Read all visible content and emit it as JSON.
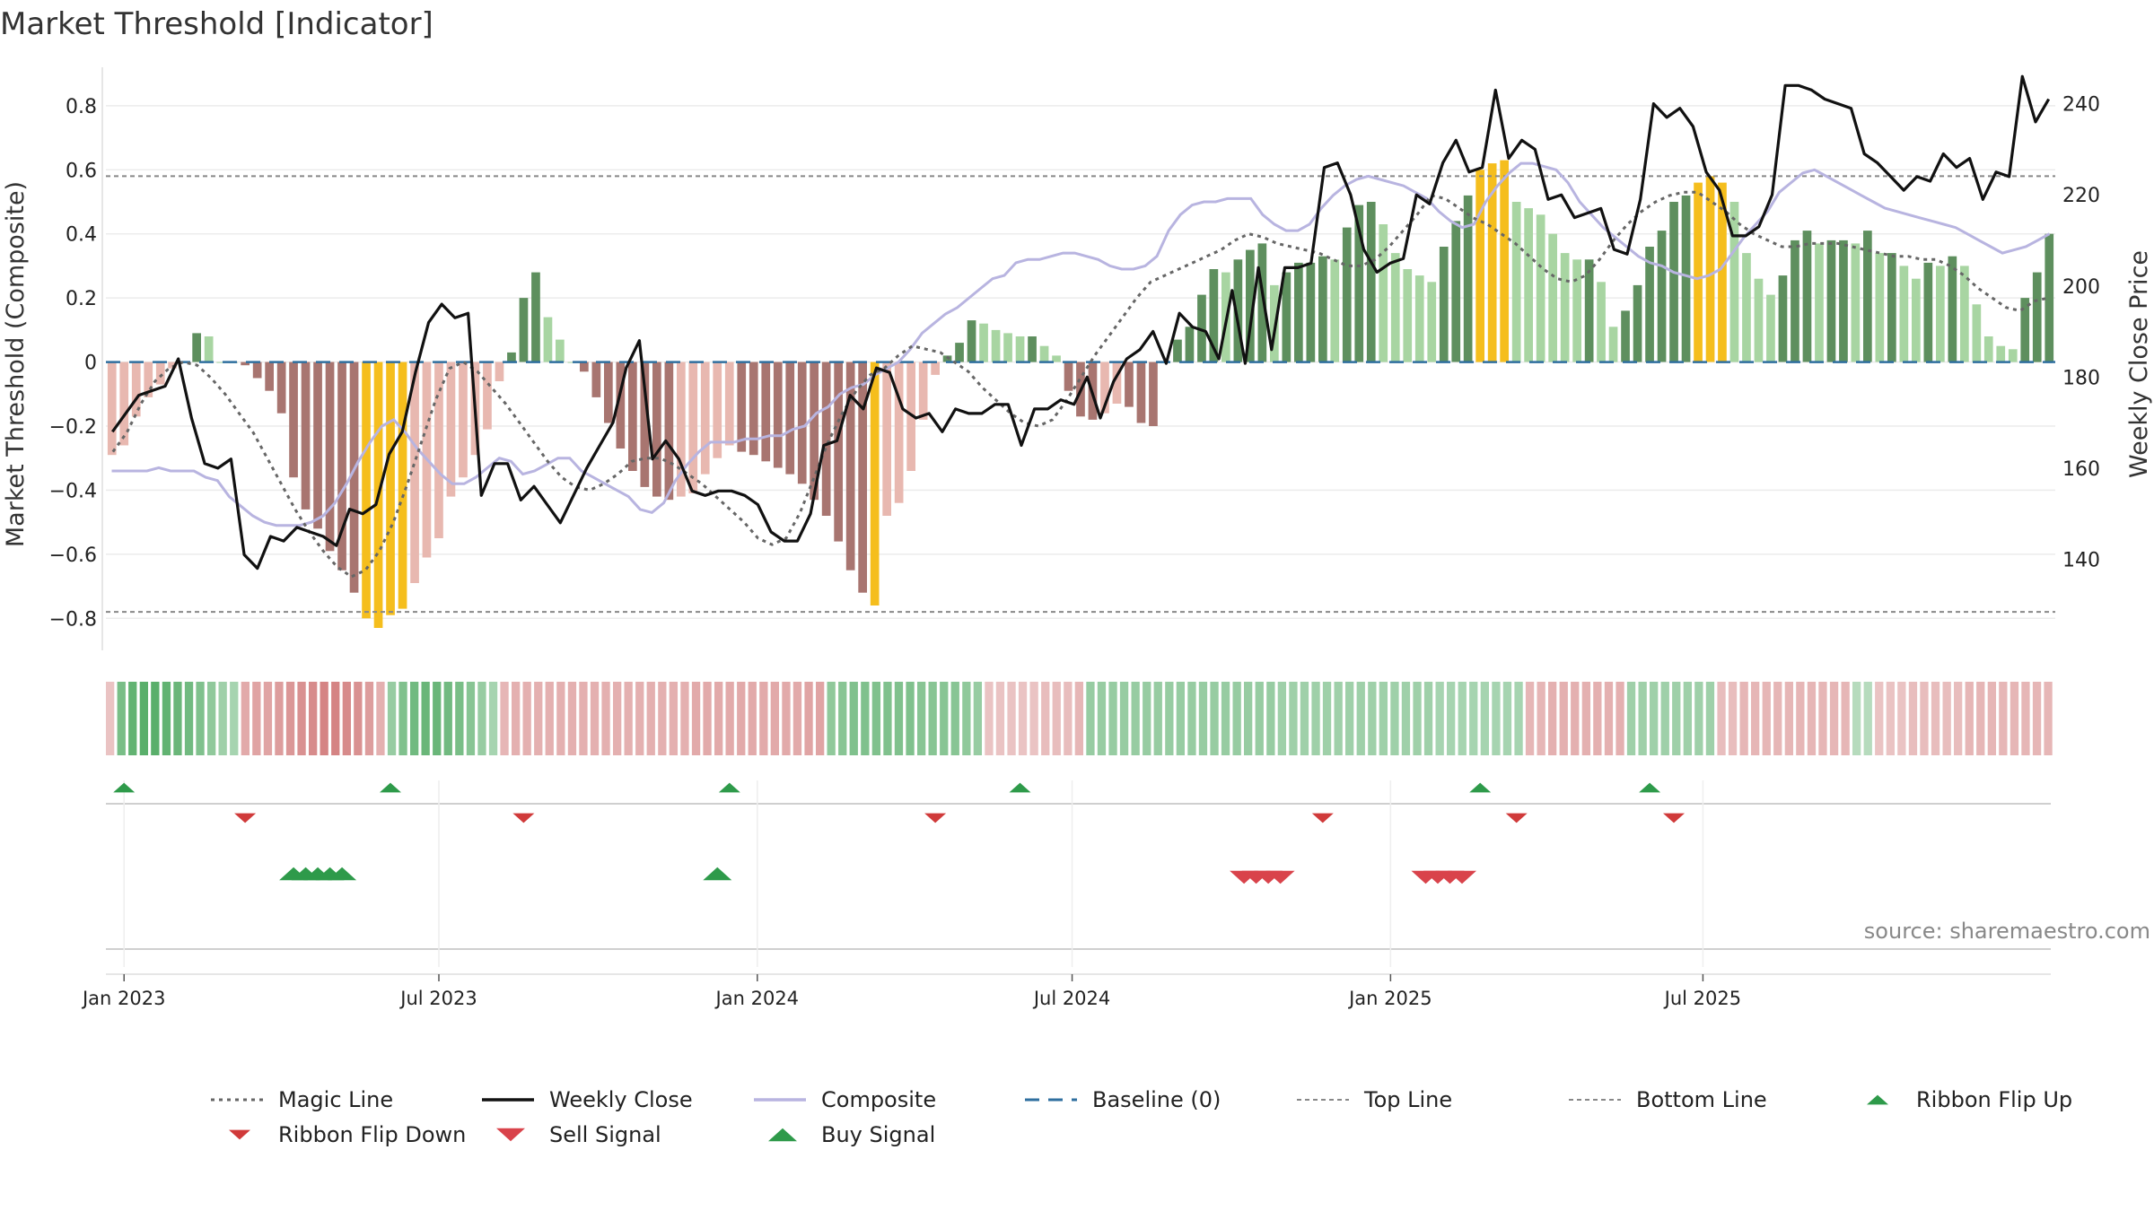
{
  "chart_data": {
    "type": "bar+line",
    "title": "Market Threshold [Indicator]",
    "ylabel_left": "Market Threshold (Composite)",
    "ylabel_right": "Weekly Close Price",
    "source": "source: sharemaestro.com",
    "ylim_left": [
      -0.9,
      0.92
    ],
    "ylim_right": [
      120,
      248
    ],
    "yticks_left": [
      {
        "v": 0.8,
        "t": "0.8"
      },
      {
        "v": 0.6,
        "t": "0.6"
      },
      {
        "v": 0.4,
        "t": "0.4"
      },
      {
        "v": 0.2,
        "t": "0.2"
      },
      {
        "v": 0,
        "t": "0"
      },
      {
        "v": -0.2,
        "t": "−0.2"
      },
      {
        "v": -0.4,
        "t": "−0.4"
      },
      {
        "v": -0.6,
        "t": "−0.6"
      },
      {
        "v": -0.8,
        "t": "−0.8"
      }
    ],
    "yticks_right": [
      {
        "v": 240,
        "t": "240"
      },
      {
        "v": 220,
        "t": "220"
      },
      {
        "v": 200,
        "t": "200"
      },
      {
        "v": 180,
        "t": "180"
      },
      {
        "v": 160,
        "t": "160"
      },
      {
        "v": 140,
        "t": "140"
      }
    ],
    "x_ticks": [
      {
        "w": 0,
        "t": "Jan 2023"
      },
      {
        "w": 26,
        "t": "Jul 2023"
      },
      {
        "w": 52.3,
        "t": "Jan 2024"
      },
      {
        "w": 78.3,
        "t": "Jul 2024"
      },
      {
        "w": 104.6,
        "t": "Jan 2025"
      },
      {
        "w": 130.4,
        "t": "Jul 2025"
      }
    ],
    "week_start": -1.5,
    "top_line": 0.58,
    "bottom_line": -0.78,
    "baseline": 0,
    "colors": {
      "bar_green_light": "#a8d5a2",
      "bar_green_dark": "#5e8f5e",
      "bar_red_light": "#e8b8b0",
      "bar_red_dark": "#a87570",
      "bar_extreme": "#f5be1d",
      "weekly_close": "#111111",
      "composite": "#b8b4e0",
      "magic_line": "#666666",
      "baseline": "#2f6f9f",
      "threshold_lines": "#888888",
      "buy": "#2e9a4a",
      "sell": "#d9434b"
    },
    "composite_bars": [
      -0.29,
      -0.26,
      -0.17,
      -0.11,
      -0.07,
      -0.02,
      0.0,
      0.09,
      0.08,
      0.0,
      0.0,
      -0.01,
      -0.05,
      -0.09,
      -0.16,
      -0.36,
      -0.46,
      -0.52,
      -0.59,
      -0.65,
      -0.72,
      -0.8,
      -0.83,
      -0.79,
      -0.77,
      -0.69,
      -0.61,
      -0.55,
      -0.42,
      -0.36,
      -0.29,
      -0.21,
      -0.06,
      0.03,
      0.2,
      0.28,
      0.14,
      0.07,
      0.0,
      -0.03,
      -0.11,
      -0.19,
      -0.27,
      -0.34,
      -0.39,
      -0.42,
      -0.43,
      -0.42,
      -0.41,
      -0.35,
      -0.3,
      -0.26,
      -0.28,
      -0.29,
      -0.31,
      -0.33,
      -0.35,
      -0.38,
      -0.43,
      -0.48,
      -0.56,
      -0.65,
      -0.72,
      -0.76,
      -0.48,
      -0.44,
      -0.34,
      -0.18,
      -0.04,
      0.02,
      0.06,
      0.13,
      0.12,
      0.1,
      0.09,
      0.08,
      0.08,
      0.05,
      0.02,
      -0.09,
      -0.17,
      -0.18,
      -0.16,
      -0.13,
      -0.14,
      -0.19,
      -0.2,
      0.0,
      0.07,
      0.11,
      0.21,
      0.29,
      0.28,
      0.32,
      0.35,
      0.37,
      0.24,
      0.28,
      0.31,
      0.31,
      0.33,
      0.32,
      0.42,
      0.49,
      0.5,
      0.43,
      0.34,
      0.29,
      0.27,
      0.25,
      0.36,
      0.44,
      0.52,
      0.6,
      0.62,
      0.63,
      0.5,
      0.48,
      0.46,
      0.4,
      0.34,
      0.32,
      0.32,
      0.25,
      0.11,
      0.16,
      0.24,
      0.36,
      0.41,
      0.5,
      0.52,
      0.56,
      0.58,
      0.56,
      0.5,
      0.34,
      0.26,
      0.21,
      0.27,
      0.38,
      0.41,
      0.37,
      0.38,
      0.38,
      0.37,
      0.41,
      0.34,
      0.34,
      0.3,
      0.26,
      0.31,
      0.3,
      0.33,
      0.3,
      0.18,
      0.08,
      0.05,
      0.04,
      0.2,
      0.28,
      0.4
    ],
    "weekly_close": [
      168,
      172,
      176,
      177,
      178,
      184,
      171,
      161,
      160,
      162,
      141,
      138,
      145,
      144,
      147,
      146,
      145,
      143,
      151,
      150,
      152,
      163,
      168,
      181,
      192,
      196,
      193,
      194,
      154,
      161,
      161,
      153,
      156,
      152,
      148,
      154,
      160,
      165,
      170,
      182,
      188,
      162,
      166,
      162,
      155,
      154,
      155,
      155,
      154,
      152,
      146,
      144,
      144,
      150,
      165,
      166,
      176,
      173,
      182,
      181,
      173,
      171,
      172,
      168,
      173,
      172,
      172,
      174,
      174,
      165,
      173,
      173,
      175,
      174,
      180,
      171,
      179,
      184,
      186,
      190,
      183,
      194,
      191,
      190,
      184,
      199,
      183,
      204,
      186,
      204,
      204,
      205,
      226,
      227,
      220,
      208,
      203,
      205,
      206,
      220,
      218,
      227,
      232,
      225,
      226,
      243,
      228,
      232,
      230,
      219,
      220,
      215,
      216,
      217,
      208,
      207,
      219,
      240,
      237,
      239,
      235,
      225,
      221,
      211,
      211,
      213,
      220,
      244,
      244,
      243,
      241,
      240,
      239,
      229,
      227,
      224,
      221,
      224,
      223,
      229,
      226,
      228,
      219,
      225,
      224,
      246,
      236,
      241
    ],
    "composite_line": [
      -0.34,
      -0.34,
      -0.34,
      -0.34,
      -0.33,
      -0.34,
      -0.34,
      -0.34,
      -0.36,
      -0.37,
      -0.42,
      -0.45,
      -0.48,
      -0.5,
      -0.51,
      -0.51,
      -0.51,
      -0.5,
      -0.48,
      -0.44,
      -0.38,
      -0.31,
      -0.25,
      -0.2,
      -0.18,
      -0.22,
      -0.27,
      -0.31,
      -0.35,
      -0.38,
      -0.38,
      -0.36,
      -0.33,
      -0.3,
      -0.31,
      -0.35,
      -0.34,
      -0.32,
      -0.3,
      -0.3,
      -0.34,
      -0.36,
      -0.38,
      -0.4,
      -0.42,
      -0.46,
      -0.47,
      -0.44,
      -0.37,
      -0.32,
      -0.28,
      -0.25,
      -0.25,
      -0.25,
      -0.24,
      -0.24,
      -0.23,
      -0.23,
      -0.21,
      -0.2,
      -0.16,
      -0.14,
      -0.1,
      -0.08,
      -0.07,
      -0.04,
      -0.02,
      0.0,
      0.04,
      0.09,
      0.12,
      0.15,
      0.17,
      0.2,
      0.23,
      0.26,
      0.27,
      0.31,
      0.32,
      0.32,
      0.33,
      0.34,
      0.34,
      0.33,
      0.32,
      0.3,
      0.29,
      0.29,
      0.3,
      0.33,
      0.41,
      0.46,
      0.49,
      0.5,
      0.5,
      0.51,
      0.51,
      0.51,
      0.46,
      0.43,
      0.41,
      0.41,
      0.43,
      0.48,
      0.52,
      0.55,
      0.57,
      0.58,
      0.57,
      0.56,
      0.55,
      0.53,
      0.51,
      0.47,
      0.44,
      0.42,
      0.43,
      0.5,
      0.55,
      0.59,
      0.62,
      0.62,
      0.61,
      0.6,
      0.56,
      0.5,
      0.46,
      0.42,
      0.39,
      0.36,
      0.33,
      0.31,
      0.3,
      0.28,
      0.27,
      0.26,
      0.27,
      0.29,
      0.34,
      0.39,
      0.43,
      0.47,
      0.53,
      0.56,
      0.59,
      0.6,
      0.58,
      0.56,
      0.54,
      0.52,
      0.5,
      0.48,
      0.47,
      0.46,
      0.45,
      0.44,
      0.43,
      0.42,
      0.4,
      0.38,
      0.36,
      0.34,
      0.35,
      0.36,
      0.38,
      0.4
    ],
    "magic_line": [
      -0.28,
      -0.22,
      -0.13,
      -0.06,
      -0.02,
      0.0,
      -0.01,
      -0.05,
      -0.1,
      -0.16,
      -0.22,
      -0.3,
      -0.38,
      -0.46,
      -0.53,
      -0.59,
      -0.64,
      -0.67,
      -0.65,
      -0.59,
      -0.5,
      -0.38,
      -0.25,
      -0.12,
      -0.02,
      0.0,
      -0.03,
      -0.08,
      -0.13,
      -0.19,
      -0.25,
      -0.31,
      -0.36,
      -0.39,
      -0.4,
      -0.38,
      -0.35,
      -0.31,
      -0.3,
      -0.3,
      -0.32,
      -0.35,
      -0.38,
      -0.42,
      -0.46,
      -0.5,
      -0.55,
      -0.57,
      -0.55,
      -0.47,
      -0.36,
      -0.25,
      -0.16,
      -0.09,
      -0.04,
      -0.02,
      0.02,
      0.05,
      0.04,
      0.03,
      0.0,
      -0.03,
      -0.08,
      -0.12,
      -0.16,
      -0.19,
      -0.2,
      -0.18,
      -0.12,
      -0.05,
      0.02,
      0.08,
      0.14,
      0.2,
      0.25,
      0.27,
      0.29,
      0.31,
      0.33,
      0.35,
      0.38,
      0.4,
      0.39,
      0.37,
      0.36,
      0.35,
      0.34,
      0.32,
      0.3,
      0.3,
      0.32,
      0.36,
      0.41,
      0.46,
      0.52,
      0.51,
      0.48,
      0.45,
      0.43,
      0.4,
      0.37,
      0.33,
      0.29,
      0.26,
      0.25,
      0.27,
      0.32,
      0.38,
      0.43,
      0.47,
      0.5,
      0.52,
      0.53,
      0.53,
      0.5,
      0.47,
      0.43,
      0.4,
      0.38,
      0.36,
      0.36,
      0.37,
      0.37,
      0.37,
      0.36,
      0.35,
      0.34,
      0.33,
      0.33,
      0.32,
      0.32,
      0.3,
      0.27,
      0.23,
      0.2,
      0.17,
      0.16,
      0.19,
      0.2
    ],
    "ribbon": [
      -0.2,
      0.6,
      0.75,
      0.8,
      0.8,
      0.75,
      0.7,
      0.65,
      0.55,
      0.45,
      0.35,
      0.3,
      -0.4,
      -0.45,
      -0.45,
      -0.5,
      -0.55,
      -0.6,
      -0.65,
      -0.7,
      -0.7,
      -0.65,
      -0.6,
      -0.5,
      -0.35,
      0.4,
      0.55,
      0.65,
      0.7,
      0.7,
      0.65,
      0.6,
      0.5,
      0.4,
      0.3,
      -0.3,
      -0.35,
      -0.35,
      -0.35,
      -0.35,
      -0.35,
      -0.35,
      -0.35,
      -0.35,
      -0.35,
      -0.35,
      -0.35,
      -0.35,
      -0.35,
      -0.35,
      -0.35,
      -0.35,
      -0.4,
      -0.4,
      -0.4,
      -0.4,
      -0.4,
      -0.4,
      -0.4,
      -0.4,
      -0.4,
      -0.4,
      -0.45,
      -0.45,
      0.45,
      0.5,
      0.55,
      0.55,
      0.55,
      0.55,
      0.55,
      0.55,
      0.5,
      0.5,
      0.5,
      0.5,
      0.45,
      0.4,
      -0.2,
      -0.2,
      -0.2,
      -0.2,
      -0.2,
      -0.25,
      -0.25,
      -0.25,
      -0.3,
      0.4,
      0.4,
      0.4,
      0.4,
      0.4,
      0.4,
      0.4,
      0.4,
      0.4,
      0.4,
      0.4,
      0.4,
      0.4,
      0.4,
      0.4,
      0.4,
      0.4,
      0.35,
      0.35,
      0.35,
      0.35,
      0.35,
      0.35,
      0.35,
      0.35,
      0.35,
      0.35,
      0.35,
      0.35,
      0.35,
      0.35,
      0.3,
      0.3,
      0.3,
      0.3,
      0.3,
      0.3,
      0.3,
      0.3,
      -0.3,
      -0.3,
      -0.35,
      -0.35,
      -0.35,
      -0.35,
      -0.35,
      -0.35,
      -0.35,
      0.35,
      0.35,
      0.35,
      0.35,
      0.35,
      0.35,
      0.35,
      0.35,
      -0.25,
      -0.25,
      -0.3,
      -0.3,
      -0.3,
      -0.3,
      -0.3,
      -0.3,
      -0.3,
      -0.3,
      -0.3,
      -0.3,
      0.2,
      0.2,
      -0.2,
      -0.2,
      -0.2,
      -0.25,
      -0.25,
      -0.25,
      -0.25,
      -0.25,
      -0.3,
      -0.3,
      -0.3,
      -0.3,
      -0.3,
      -0.3,
      -0.3,
      -0.3
    ],
    "ribbon_flip_up_weeks": [
      0,
      22,
      50,
      74,
      112,
      126
    ],
    "ribbon_flip_down_weeks": [
      10,
      33,
      67,
      99,
      115,
      128
    ],
    "buy_signal_weeks": [
      14,
      15,
      16,
      17,
      18,
      49
    ],
    "sell_signal_weeks": [
      92.5,
      93.5,
      94.5,
      95.5,
      107.5,
      108.5,
      109.5,
      110.5
    ],
    "legend": [
      {
        "label": "Magic Line",
        "kind": "dotted"
      },
      {
        "label": "Weekly Close",
        "kind": "solid"
      },
      {
        "label": "Composite",
        "kind": "lavender"
      },
      {
        "label": "Baseline (0)",
        "kind": "dashed"
      },
      {
        "label": "Top Line",
        "kind": "thin-dashed"
      },
      {
        "label": "Bottom Line",
        "kind": "thin-dashed"
      },
      {
        "label": "Ribbon Flip Up",
        "kind": "tri-up-small"
      },
      {
        "label": "Ribbon Flip Down",
        "kind": "tri-down-small"
      },
      {
        "label": "Sell Signal",
        "kind": "tri-down-big"
      },
      {
        "label": "Buy Signal",
        "kind": "tri-up-big"
      }
    ]
  }
}
